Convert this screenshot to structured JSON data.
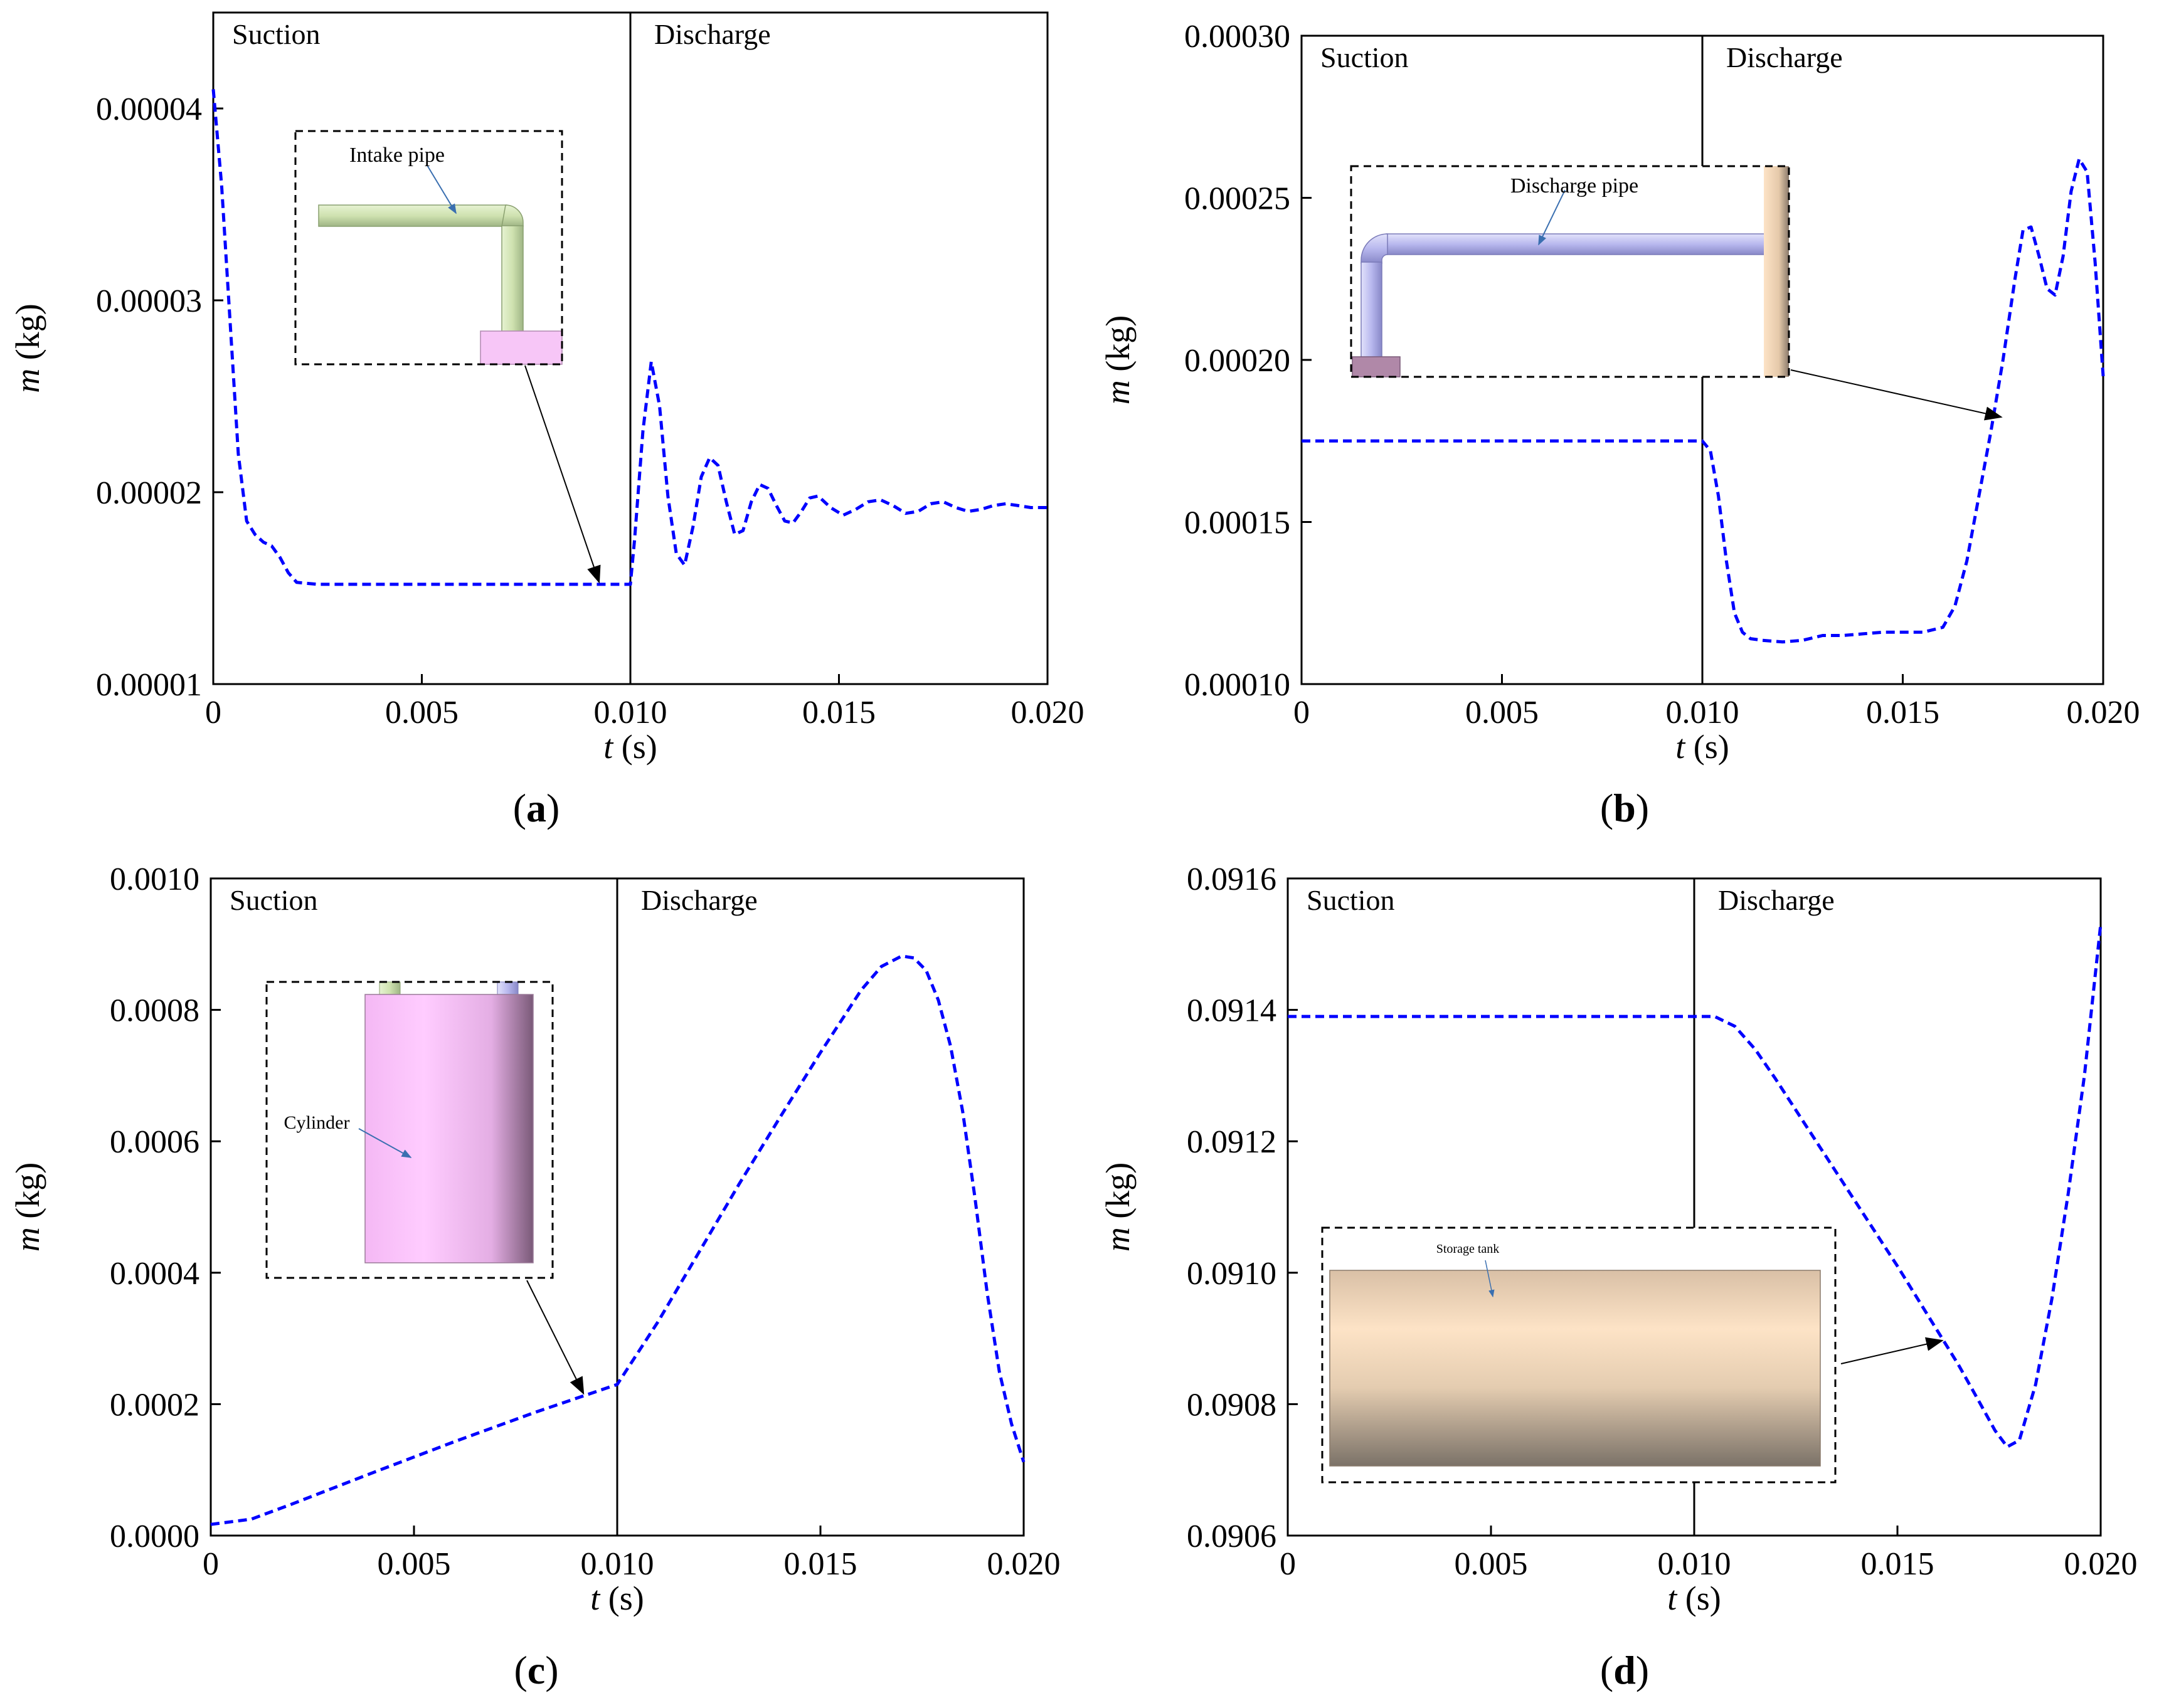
{
  "chart_data": [
    {
      "type": "line",
      "panel_label": "a",
      "xlabel": "t",
      "xunit": " (s)",
      "ylabel": "m",
      "yunit": " (kg)",
      "xlim": [
        0,
        0.02
      ],
      "ylim": [
        1e-05,
        4.5e-05
      ],
      "xticks": [
        0,
        0.005,
        0.01,
        0.015,
        0.02
      ],
      "xtick_labels": [
        "0",
        "0.005",
        "0.010",
        "0.015",
        "0.020"
      ],
      "yticks": [
        1e-05,
        2e-05,
        3e-05,
        4e-05
      ],
      "ytick_labels": [
        "0.00001",
        "0.00002",
        "0.00003",
        "0.00004"
      ],
      "divider_x": 0.01,
      "region_labels": [
        "Suction",
        "Discharge"
      ],
      "series": [
        {
          "name": "m",
          "color": "#0000ff",
          "x": [
            0,
            0.0002,
            0.0004,
            0.0006,
            0.0008,
            0.001,
            0.0012,
            0.0014,
            0.0016,
            0.0018,
            0.002,
            0.0025,
            0.003,
            0.005,
            0.007,
            0.009,
            0.01,
            0.0101,
            0.0103,
            0.0105,
            0.0107,
            0.0109,
            0.0111,
            0.0113,
            0.0115,
            0.0117,
            0.0119,
            0.0121,
            0.0123,
            0.0125,
            0.0127,
            0.0129,
            0.0131,
            0.0133,
            0.0135,
            0.0137,
            0.0139,
            0.0141,
            0.0143,
            0.0145,
            0.0148,
            0.0151,
            0.0154,
            0.0157,
            0.016,
            0.0163,
            0.0166,
            0.0169,
            0.0172,
            0.0175,
            0.0178,
            0.0181,
            0.0184,
            0.0187,
            0.019,
            0.0193,
            0.0196,
            0.0199,
            0.02
          ],
          "y": [
            4.1e-05,
            3.6e-05,
            2.9e-05,
            2.2e-05,
            1.85e-05,
            1.78e-05,
            1.74e-05,
            1.72e-05,
            1.66e-05,
            1.58e-05,
            1.53e-05,
            1.52e-05,
            1.52e-05,
            1.52e-05,
            1.52e-05,
            1.52e-05,
            1.52e-05,
            1.75e-05,
            2.32e-05,
            2.68e-05,
            2.45e-05,
            1.98e-05,
            1.68e-05,
            1.62e-05,
            1.82e-05,
            2.08e-05,
            2.18e-05,
            2.14e-05,
            1.95e-05,
            1.78e-05,
            1.8e-05,
            1.95e-05,
            2.04e-05,
            2.02e-05,
            1.93e-05,
            1.85e-05,
            1.84e-05,
            1.9e-05,
            1.97e-05,
            1.98e-05,
            1.92e-05,
            1.88e-05,
            1.91e-05,
            1.95e-05,
            1.96e-05,
            1.93e-05,
            1.89e-05,
            1.9e-05,
            1.94e-05,
            1.95e-05,
            1.92e-05,
            1.9e-05,
            1.91e-05,
            1.93e-05,
            1.94e-05,
            1.93e-05,
            1.92e-05,
            1.92e-05,
            1.92e-05
          ]
        }
      ],
      "inset": {
        "label": "Intake pipe"
      }
    },
    {
      "type": "line",
      "panel_label": "b",
      "xlabel": "t",
      "xunit": " (s)",
      "ylabel": "m",
      "yunit": " (kg)",
      "xlim": [
        0,
        0.02
      ],
      "ylim": [
        0.0001,
        0.0003
      ],
      "xticks": [
        0,
        0.005,
        0.01,
        0.015,
        0.02
      ],
      "xtick_labels": [
        "0",
        "0.005",
        "0.010",
        "0.015",
        "0.020"
      ],
      "yticks": [
        0.0001,
        0.00015,
        0.0002,
        0.00025,
        0.0003
      ],
      "ytick_labels": [
        "0.00010",
        "0.00015",
        "0.00020",
        "0.00025",
        "0.00030"
      ],
      "divider_x": 0.01,
      "region_labels": [
        "Suction",
        "Discharge"
      ],
      "series": [
        {
          "name": "m",
          "color": "#0000ff",
          "x": [
            0,
            0.002,
            0.004,
            0.006,
            0.008,
            0.01,
            0.0102,
            0.0104,
            0.0106,
            0.0108,
            0.011,
            0.0112,
            0.0115,
            0.012,
            0.0125,
            0.013,
            0.0135,
            0.014,
            0.0145,
            0.015,
            0.0155,
            0.016,
            0.0163,
            0.0166,
            0.0169,
            0.0172,
            0.0175,
            0.0178,
            0.018,
            0.0182,
            0.0184,
            0.0186,
            0.0188,
            0.019,
            0.0192,
            0.0194,
            0.0196,
            0.0198,
            0.02
          ],
          "y": [
            0.000175,
            0.000175,
            0.000175,
            0.000175,
            0.000175,
            0.000175,
            0.000172,
            0.000158,
            0.000138,
            0.000122,
            0.000116,
            0.000114,
            0.0001135,
            0.000113,
            0.0001135,
            0.000115,
            0.000115,
            0.0001155,
            0.000116,
            0.000116,
            0.000116,
            0.0001175,
            0.000124,
            0.000138,
            0.000158,
            0.000178,
            0.0002,
            0.000225,
            0.00024,
            0.000241,
            0.000232,
            0.000222,
            0.00022,
            0.000232,
            0.000252,
            0.000262,
            0.000258,
            0.00023,
            0.000195
          ]
        }
      ],
      "inset": {
        "label": "Discharge pipe"
      }
    },
    {
      "type": "line",
      "panel_label": "c",
      "xlabel": "t",
      "xunit": " (s)",
      "ylabel": "m",
      "yunit": " (kg)",
      "xlim": [
        0,
        0.02
      ],
      "ylim": [
        0,
        0.001
      ],
      "xticks": [
        0,
        0.005,
        0.01,
        0.015,
        0.02
      ],
      "xtick_labels": [
        "0",
        "0.005",
        "0.010",
        "0.015",
        "0.020"
      ],
      "yticks": [
        0,
        0.0002,
        0.0004,
        0.0006,
        0.0008,
        0.001
      ],
      "ytick_labels": [
        "0.0000",
        "0.0002",
        "0.0004",
        "0.0006",
        "0.0008",
        "0.0010"
      ],
      "divider_x": 0.01,
      "region_labels": [
        "Suction",
        "Discharge"
      ],
      "series": [
        {
          "name": "m",
          "color": "#0000ff",
          "x": [
            0,
            0.001,
            0.002,
            0.004,
            0.006,
            0.008,
            0.01,
            0.011,
            0.012,
            0.013,
            0.014,
            0.015,
            0.016,
            0.0165,
            0.017,
            0.0173,
            0.0176,
            0.0179,
            0.0182,
            0.0185,
            0.0188,
            0.0191,
            0.0194,
            0.0197,
            0.02
          ],
          "y": [
            1.7e-05,
            2.5e-05,
            4.8e-05,
            9.6e-05,
            0.000143,
            0.000188,
            0.00023,
            0.000325,
            0.00043,
            0.000535,
            0.000636,
            0.000735,
            0.00083,
            0.000866,
            0.000882,
            0.000879,
            0.00086,
            0.000815,
            0.000745,
            0.000645,
            0.000515,
            0.00037,
            0.00025,
            0.00017,
            0.000112
          ]
        }
      ],
      "inset": {
        "label": "Cylinder"
      }
    },
    {
      "type": "line",
      "panel_label": "d",
      "xlabel": "t",
      "xunit": " (s)",
      "ylabel": "m",
      "yunit": " (kg)",
      "xlim": [
        0,
        0.02
      ],
      "ylim": [
        0.0906,
        0.0916
      ],
      "xticks": [
        0,
        0.005,
        0.01,
        0.015,
        0.02
      ],
      "xtick_labels": [
        "0",
        "0.005",
        "0.010",
        "0.015",
        "0.020"
      ],
      "yticks": [
        0.0906,
        0.0908,
        0.091,
        0.0912,
        0.0914,
        0.0916
      ],
      "ytick_labels": [
        "0.0906",
        "0.0908",
        "0.0910",
        "0.0912",
        "0.0914",
        "0.0916"
      ],
      "divider_x": 0.01,
      "region_labels": [
        "Suction",
        "Discharge"
      ],
      "series": [
        {
          "name": "m",
          "color": "#0000ff",
          "x": [
            0,
            0.002,
            0.004,
            0.006,
            0.008,
            0.01,
            0.0105,
            0.011,
            0.0115,
            0.012,
            0.013,
            0.014,
            0.015,
            0.016,
            0.0165,
            0.017,
            0.0174,
            0.0177,
            0.018,
            0.0184,
            0.0188,
            0.0192,
            0.0196,
            0.02
          ],
          "y": [
            0.09139,
            0.09139,
            0.09139,
            0.09139,
            0.09139,
            0.09139,
            0.09139,
            0.091375,
            0.09134,
            0.091295,
            0.0912,
            0.091105,
            0.09101,
            0.09091,
            0.09086,
            0.090805,
            0.09076,
            0.090735,
            0.090745,
            0.09083,
            0.09096,
            0.09112,
            0.0913,
            0.09153
          ]
        }
      ],
      "inset": {
        "label": "Storage tank"
      }
    }
  ]
}
